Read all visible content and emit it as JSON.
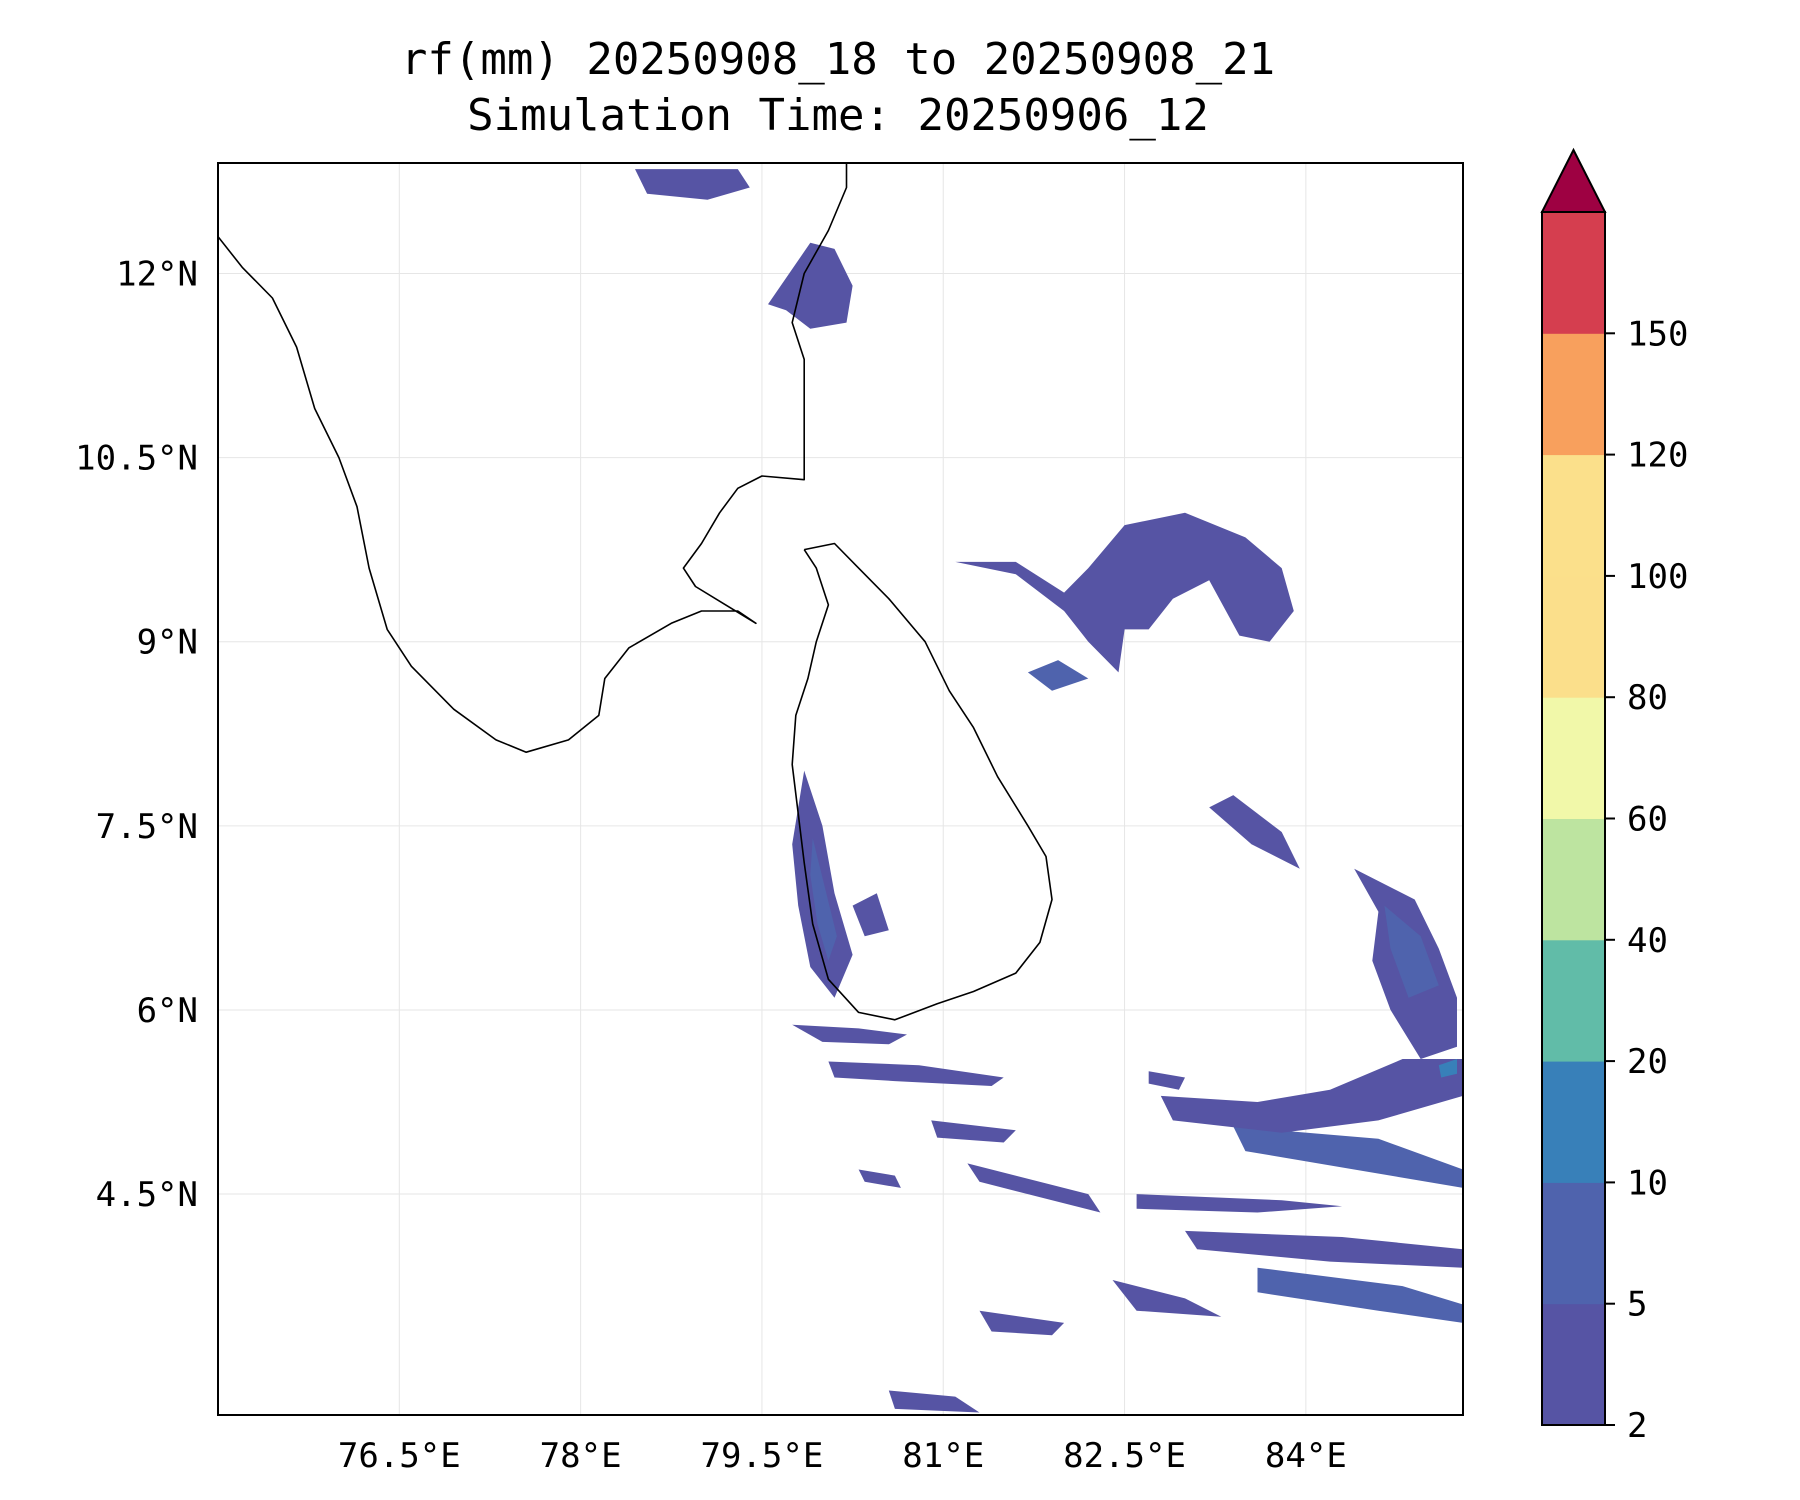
{
  "title": "rf(mm) 20250908_18 to 20250908_21",
  "subtitle": "Simulation Time: 20250906_12",
  "map": {
    "lon_range": [
      75.0,
      85.3
    ],
    "lat_range": [
      2.7,
      12.9
    ],
    "lon_ticks": [
      {
        "value": 76.5,
        "label": "76.5°E"
      },
      {
        "value": 78.0,
        "label": "78°E"
      },
      {
        "value": 79.5,
        "label": "79.5°E"
      },
      {
        "value": 81.0,
        "label": "81°E"
      },
      {
        "value": 82.5,
        "label": "82.5°E"
      },
      {
        "value": 84.0,
        "label": "84°E"
      }
    ],
    "lat_ticks": [
      {
        "value": 12.0,
        "label": "12°N"
      },
      {
        "value": 10.5,
        "label": "10.5°N"
      },
      {
        "value": 9.0,
        "label": "9°N"
      },
      {
        "value": 7.5,
        "label": "7.5°N"
      },
      {
        "value": 6.0,
        "label": "6°N"
      },
      {
        "value": 4.5,
        "label": "4.5°N"
      }
    ],
    "gridlines": true,
    "coastline_color": "#000000",
    "coastlines": [
      [
        [
          75.0,
          12.3
        ],
        [
          75.2,
          12.05
        ],
        [
          75.45,
          11.8
        ],
        [
          75.65,
          11.4
        ],
        [
          75.8,
          10.9
        ],
        [
          76.0,
          10.5
        ],
        [
          76.15,
          10.1
        ],
        [
          76.25,
          9.6
        ],
        [
          76.4,
          9.1
        ],
        [
          76.6,
          8.8
        ],
        [
          76.95,
          8.45
        ],
        [
          77.3,
          8.2
        ],
        [
          77.55,
          8.1
        ],
        [
          77.9,
          8.2
        ],
        [
          78.15,
          8.4
        ],
        [
          78.2,
          8.7
        ],
        [
          78.4,
          8.95
        ],
        [
          78.75,
          9.15
        ],
        [
          79.0,
          9.25
        ],
        [
          79.3,
          9.25
        ],
        [
          79.45,
          9.15
        ],
        [
          79.2,
          9.3
        ],
        [
          78.95,
          9.45
        ],
        [
          78.85,
          9.6
        ],
        [
          79.0,
          9.8
        ],
        [
          79.15,
          10.05
        ],
        [
          79.3,
          10.25
        ],
        [
          79.5,
          10.35
        ],
        [
          79.85,
          10.32
        ],
        [
          79.85,
          10.9
        ],
        [
          79.85,
          11.3
        ],
        [
          79.75,
          11.6
        ],
        [
          79.85,
          12.0
        ],
        [
          80.05,
          12.35
        ],
        [
          80.2,
          12.7
        ],
        [
          80.2,
          12.9
        ]
      ],
      [
        [
          79.85,
          9.75
        ],
        [
          80.1,
          9.8
        ],
        [
          80.3,
          9.6
        ],
        [
          80.55,
          9.35
        ],
        [
          80.85,
          9.0
        ],
        [
          81.05,
          8.6
        ],
        [
          81.25,
          8.3
        ],
        [
          81.45,
          7.9
        ],
        [
          81.7,
          7.5
        ],
        [
          81.85,
          7.25
        ],
        [
          81.9,
          6.9
        ],
        [
          81.8,
          6.55
        ],
        [
          81.6,
          6.3
        ],
        [
          81.25,
          6.15
        ],
        [
          80.95,
          6.05
        ],
        [
          80.6,
          5.92
        ],
        [
          80.3,
          5.98
        ],
        [
          80.05,
          6.25
        ],
        [
          79.92,
          6.7
        ],
        [
          79.85,
          7.2
        ],
        [
          79.8,
          7.6
        ],
        [
          79.75,
          8.0
        ],
        [
          79.78,
          8.4
        ],
        [
          79.88,
          8.7
        ],
        [
          79.95,
          9.0
        ],
        [
          80.05,
          9.3
        ],
        [
          79.95,
          9.6
        ],
        [
          79.85,
          9.75
        ]
      ]
    ],
    "rain_polygons": [
      {
        "level": 1,
        "points": [
          [
            78.45,
            12.85
          ],
          [
            79.3,
            12.85
          ],
          [
            79.4,
            12.7
          ],
          [
            79.05,
            12.6
          ],
          [
            78.55,
            12.65
          ]
        ]
      },
      {
        "level": 1,
        "points": [
          [
            79.55,
            11.75
          ],
          [
            79.9,
            12.25
          ],
          [
            80.1,
            12.2
          ],
          [
            80.25,
            11.9
          ],
          [
            80.2,
            11.6
          ],
          [
            79.9,
            11.55
          ],
          [
            79.7,
            11.7
          ]
        ]
      },
      {
        "level": 1,
        "points": [
          [
            79.85,
            7.95
          ],
          [
            80.0,
            7.5
          ],
          [
            80.1,
            6.95
          ],
          [
            80.25,
            6.45
          ],
          [
            80.1,
            6.1
          ],
          [
            79.9,
            6.35
          ],
          [
            79.8,
            6.85
          ],
          [
            79.75,
            7.35
          ]
        ]
      },
      {
        "level": 2,
        "points": [
          [
            79.92,
            7.4
          ],
          [
            80.02,
            7.0
          ],
          [
            80.12,
            6.6
          ],
          [
            80.05,
            6.4
          ],
          [
            79.96,
            6.7
          ],
          [
            79.9,
            7.1
          ]
        ]
      },
      {
        "level": 1,
        "points": [
          [
            80.25,
            6.85
          ],
          [
            80.45,
            6.95
          ],
          [
            80.55,
            6.65
          ],
          [
            80.35,
            6.6
          ]
        ]
      },
      {
        "level": 1,
        "points": [
          [
            81.1,
            9.65
          ],
          [
            81.6,
            9.55
          ],
          [
            82.0,
            9.25
          ],
          [
            82.2,
            9.0
          ],
          [
            82.45,
            8.75
          ],
          [
            82.5,
            9.1
          ],
          [
            82.7,
            9.1
          ],
          [
            82.9,
            9.35
          ],
          [
            83.2,
            9.5
          ],
          [
            83.45,
            9.05
          ],
          [
            83.7,
            9.0
          ],
          [
            83.9,
            9.25
          ],
          [
            83.8,
            9.6
          ],
          [
            83.5,
            9.85
          ],
          [
            83.0,
            10.05
          ],
          [
            82.5,
            9.95
          ],
          [
            82.2,
            9.6
          ],
          [
            82.0,
            9.4
          ],
          [
            81.6,
            9.65
          ]
        ]
      },
      {
        "level": 2,
        "points": [
          [
            81.7,
            8.75
          ],
          [
            81.95,
            8.85
          ],
          [
            82.2,
            8.7
          ],
          [
            81.9,
            8.6
          ]
        ]
      },
      {
        "level": 1,
        "points": [
          [
            83.2,
            7.65
          ],
          [
            83.55,
            7.35
          ],
          [
            83.95,
            7.15
          ],
          [
            83.8,
            7.45
          ],
          [
            83.4,
            7.75
          ]
        ]
      },
      {
        "level": 1,
        "points": [
          [
            84.4,
            7.15
          ],
          [
            84.9,
            6.9
          ],
          [
            85.1,
            6.5
          ],
          [
            85.25,
            6.1
          ],
          [
            85.25,
            5.7
          ],
          [
            84.95,
            5.6
          ],
          [
            84.7,
            6.0
          ],
          [
            84.55,
            6.4
          ],
          [
            84.6,
            6.8
          ]
        ]
      },
      {
        "level": 2,
        "points": [
          [
            84.65,
            6.85
          ],
          [
            84.95,
            6.6
          ],
          [
            85.1,
            6.2
          ],
          [
            84.85,
            6.1
          ],
          [
            84.7,
            6.5
          ]
        ]
      },
      {
        "level": 1,
        "points": [
          [
            79.75,
            5.88
          ],
          [
            80.3,
            5.85
          ],
          [
            80.7,
            5.8
          ],
          [
            80.55,
            5.72
          ],
          [
            80.0,
            5.74
          ]
        ]
      },
      {
        "level": 1,
        "points": [
          [
            80.05,
            5.58
          ],
          [
            80.8,
            5.55
          ],
          [
            81.5,
            5.45
          ],
          [
            81.4,
            5.38
          ],
          [
            80.6,
            5.42
          ],
          [
            80.1,
            5.45
          ]
        ]
      },
      {
        "level": 1,
        "points": [
          [
            80.9,
            5.1
          ],
          [
            81.6,
            5.02
          ],
          [
            81.5,
            4.92
          ],
          [
            80.95,
            4.96
          ]
        ]
      },
      {
        "level": 1,
        "points": [
          [
            81.2,
            4.75
          ],
          [
            82.2,
            4.5
          ],
          [
            82.3,
            4.35
          ],
          [
            81.3,
            4.6
          ]
        ]
      },
      {
        "level": 2,
        "points": [
          [
            83.4,
            5.05
          ],
          [
            84.6,
            4.95
          ],
          [
            85.3,
            4.7
          ],
          [
            85.3,
            4.55
          ],
          [
            84.4,
            4.7
          ],
          [
            83.5,
            4.85
          ]
        ]
      },
      {
        "level": 1,
        "points": [
          [
            82.6,
            4.5
          ],
          [
            83.8,
            4.45
          ],
          [
            84.3,
            4.4
          ],
          [
            83.6,
            4.35
          ],
          [
            82.6,
            4.38
          ]
        ]
      },
      {
        "level": 1,
        "points": [
          [
            83.0,
            4.2
          ],
          [
            84.3,
            4.15
          ],
          [
            85.3,
            4.05
          ],
          [
            85.3,
            3.9
          ],
          [
            84.2,
            3.95
          ],
          [
            83.1,
            4.05
          ]
        ]
      },
      {
        "level": 2,
        "points": [
          [
            83.6,
            3.9
          ],
          [
            84.8,
            3.75
          ],
          [
            85.3,
            3.6
          ],
          [
            85.3,
            3.45
          ],
          [
            84.6,
            3.55
          ],
          [
            83.6,
            3.7
          ]
        ]
      },
      {
        "level": 1,
        "points": [
          [
            82.4,
            3.8
          ],
          [
            83.0,
            3.65
          ],
          [
            83.3,
            3.5
          ],
          [
            82.6,
            3.55
          ]
        ]
      },
      {
        "level": 1,
        "points": [
          [
            81.3,
            3.55
          ],
          [
            82.0,
            3.45
          ],
          [
            81.9,
            3.35
          ],
          [
            81.4,
            3.38
          ]
        ]
      },
      {
        "level": 1,
        "points": [
          [
            80.55,
            2.9
          ],
          [
            81.1,
            2.85
          ],
          [
            81.3,
            2.72
          ],
          [
            80.6,
            2.75
          ]
        ]
      },
      {
        "level": 1,
        "points": [
          [
            82.8,
            5.3
          ],
          [
            83.6,
            5.25
          ],
          [
            84.2,
            5.35
          ],
          [
            84.8,
            5.6
          ],
          [
            85.3,
            5.6
          ],
          [
            85.3,
            5.3
          ],
          [
            84.6,
            5.1
          ],
          [
            83.8,
            5.0
          ],
          [
            82.9,
            5.1
          ]
        ]
      },
      {
        "level": 3,
        "points": [
          [
            85.1,
            5.55
          ],
          [
            85.25,
            5.6
          ],
          [
            85.25,
            5.48
          ],
          [
            85.12,
            5.45
          ]
        ]
      },
      {
        "level": 1,
        "points": [
          [
            80.3,
            4.7
          ],
          [
            80.6,
            4.65
          ],
          [
            80.65,
            4.55
          ],
          [
            80.35,
            4.6
          ]
        ]
      },
      {
        "level": 1,
        "points": [
          [
            82.7,
            5.5
          ],
          [
            83.0,
            5.45
          ],
          [
            82.95,
            5.35
          ],
          [
            82.7,
            5.4
          ]
        ]
      }
    ]
  },
  "colorbar": {
    "ticks": [
      "2",
      "5",
      "10",
      "20",
      "40",
      "60",
      "80",
      "100",
      "120",
      "150"
    ],
    "colors": [
      "#5654a4",
      "#4f63ad",
      "#3880b9",
      "#61bca8",
      "#bde4a0",
      "#f1f8a9",
      "#fbdf8b",
      "#fbe08b",
      "#f8a05d",
      "#d53e4f"
    ],
    "over_color": "#9e0142"
  }
}
